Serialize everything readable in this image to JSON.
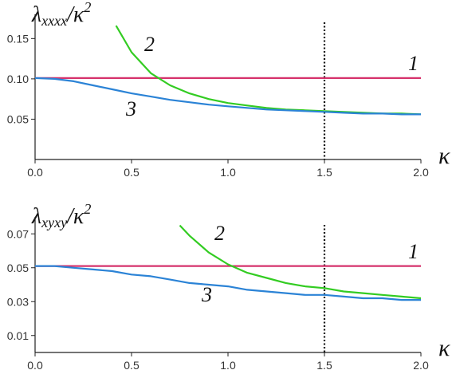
{
  "chart_data": [
    {
      "type": "line",
      "ylabel": "λxxxx/κ²",
      "ylabel_main": "λ",
      "ylabel_sub": "xxxx",
      "ylabel_tail": "/κ",
      "ylabel_sup": "2",
      "xlabel": "κ",
      "xlim": [
        0,
        2.0
      ],
      "ylim": [
        0.0,
        0.18
      ],
      "x_ticks": [
        0.0,
        0.5,
        1.0,
        1.5,
        2.0
      ],
      "x_tick_labels": [
        "0.0",
        "0.5",
        "1.0",
        "1.5",
        "2.0"
      ],
      "y_ticks": [
        0.05,
        0.1,
        0.15
      ],
      "y_tick_labels": [
        "0.05",
        "0.10",
        "0.15"
      ],
      "vline_x": 1.5,
      "series": [
        {
          "label": "1",
          "color": "#d6336c",
          "x": [
            0.0,
            2.0
          ],
          "y": [
            0.101,
            0.101
          ]
        },
        {
          "label": "2",
          "color": "#33cc22",
          "x": [
            0.42,
            0.5,
            0.6,
            0.7,
            0.8,
            0.9,
            1.0,
            1.1,
            1.2,
            1.3,
            1.4,
            1.5,
            1.6,
            1.7,
            1.8,
            1.9,
            2.0
          ],
          "y": [
            0.166,
            0.133,
            0.107,
            0.092,
            0.082,
            0.075,
            0.07,
            0.067,
            0.064,
            0.062,
            0.061,
            0.06,
            0.059,
            0.058,
            0.057,
            0.057,
            0.056
          ]
        },
        {
          "label": "3",
          "color": "#2b83d6",
          "x": [
            0.0,
            0.1,
            0.2,
            0.3,
            0.4,
            0.5,
            0.6,
            0.7,
            0.8,
            0.9,
            1.0,
            1.1,
            1.2,
            1.3,
            1.4,
            1.5,
            1.6,
            1.7,
            1.8,
            1.9,
            2.0
          ],
          "y": [
            0.101,
            0.1,
            0.097,
            0.092,
            0.087,
            0.082,
            0.078,
            0.074,
            0.071,
            0.068,
            0.066,
            0.064,
            0.062,
            0.061,
            0.06,
            0.059,
            0.058,
            0.057,
            0.057,
            0.056,
            0.056
          ]
        }
      ]
    },
    {
      "type": "line",
      "ylabel": "λxyxy/κ²",
      "ylabel_main": "λ",
      "ylabel_sub": "xyxy",
      "ylabel_tail": "/κ",
      "ylabel_sup": "2",
      "xlabel": "κ",
      "xlim": [
        0,
        2.0
      ],
      "ylim": [
        0.0,
        0.08
      ],
      "x_ticks": [
        0.0,
        0.5,
        1.0,
        1.5,
        2.0
      ],
      "x_tick_labels": [
        "0.0",
        "0.5",
        "1.0",
        "1.5",
        "2.0"
      ],
      "y_ticks": [
        0.01,
        0.03,
        0.05,
        0.07
      ],
      "y_tick_labels": [
        "0.01",
        "0.03",
        "0.05",
        "0.07"
      ],
      "vline_x": 1.5,
      "series": [
        {
          "label": "1",
          "color": "#d6336c",
          "x": [
            0.0,
            2.0
          ],
          "y": [
            0.051,
            0.051
          ]
        },
        {
          "label": "2",
          "color": "#33cc22",
          "x": [
            0.75,
            0.8,
            0.9,
            1.0,
            1.1,
            1.2,
            1.3,
            1.4,
            1.5,
            1.6,
            1.7,
            1.8,
            1.9,
            2.0
          ],
          "y": [
            0.075,
            0.069,
            0.059,
            0.052,
            0.047,
            0.044,
            0.041,
            0.039,
            0.038,
            0.036,
            0.035,
            0.034,
            0.033,
            0.032
          ]
        },
        {
          "label": "3",
          "color": "#2b83d6",
          "x": [
            0.0,
            0.1,
            0.2,
            0.3,
            0.4,
            0.5,
            0.6,
            0.7,
            0.8,
            0.9,
            1.0,
            1.1,
            1.2,
            1.3,
            1.4,
            1.5,
            1.6,
            1.7,
            1.8,
            1.9,
            2.0
          ],
          "y": [
            0.051,
            0.051,
            0.05,
            0.049,
            0.048,
            0.046,
            0.045,
            0.043,
            0.041,
            0.04,
            0.039,
            0.037,
            0.036,
            0.035,
            0.034,
            0.034,
            0.033,
            0.032,
            0.032,
            0.031,
            0.031
          ]
        }
      ]
    }
  ]
}
